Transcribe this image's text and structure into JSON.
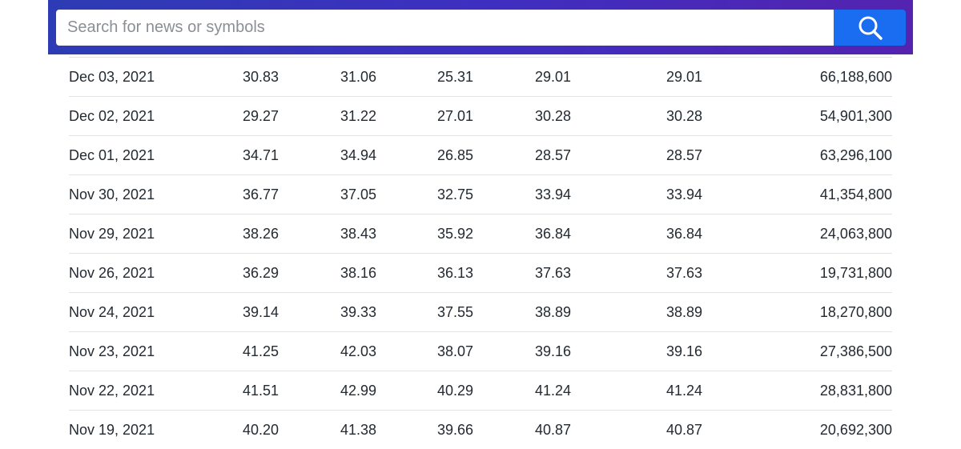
{
  "search": {
    "placeholder": "Search for news or symbols"
  },
  "table": {
    "rows": [
      [
        "Dec 03, 2021",
        "30.83",
        "31.06",
        "25.31",
        "29.01",
        "29.01",
        "66,188,600"
      ],
      [
        "Dec 02, 2021",
        "29.27",
        "31.22",
        "27.01",
        "30.28",
        "30.28",
        "54,901,300"
      ],
      [
        "Dec 01, 2021",
        "34.71",
        "34.94",
        "26.85",
        "28.57",
        "28.57",
        "63,296,100"
      ],
      [
        "Nov 30, 2021",
        "36.77",
        "37.05",
        "32.75",
        "33.94",
        "33.94",
        "41,354,800"
      ],
      [
        "Nov 29, 2021",
        "38.26",
        "38.43",
        "35.92",
        "36.84",
        "36.84",
        "24,063,800"
      ],
      [
        "Nov 26, 2021",
        "36.29",
        "38.16",
        "36.13",
        "37.63",
        "37.63",
        "19,731,800"
      ],
      [
        "Nov 24, 2021",
        "39.14",
        "39.33",
        "37.55",
        "38.89",
        "38.89",
        "18,270,800"
      ],
      [
        "Nov 23, 2021",
        "41.25",
        "42.03",
        "38.07",
        "39.16",
        "39.16",
        "27,386,500"
      ],
      [
        "Nov 22, 2021",
        "41.51",
        "42.99",
        "40.29",
        "41.24",
        "41.24",
        "28,831,800"
      ],
      [
        "Nov 19, 2021",
        "40.20",
        "41.38",
        "39.66",
        "40.87",
        "40.87",
        "20,692,300"
      ]
    ]
  }
}
